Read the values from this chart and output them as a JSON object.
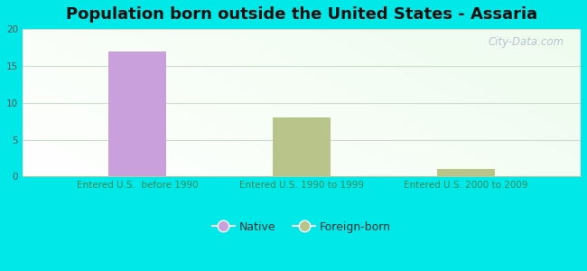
{
  "title": "Population born outside the United States - Assaria",
  "categories": [
    "Entered U.S.  before 1990",
    "Entered U.S. 1990 to 1999",
    "Entered U.S. 2000 to 2009"
  ],
  "native_values": [
    17,
    0,
    0
  ],
  "foreign_values": [
    0,
    8,
    1
  ],
  "native_color": "#c9a0dc",
  "foreign_color": "#b8c48a",
  "ylim": [
    0,
    20
  ],
  "yticks": [
    0,
    5,
    10,
    15,
    20
  ],
  "outer_bg": "#00e8e8",
  "watermark": "City-Data.com",
  "bar_width": 0.35,
  "title_fontsize": 13,
  "tick_fontsize": 7.5,
  "legend_fontsize": 9,
  "xtick_color": "#2d8c5a",
  "ytick_color": "#555555",
  "grid_color": "#ccddcc"
}
